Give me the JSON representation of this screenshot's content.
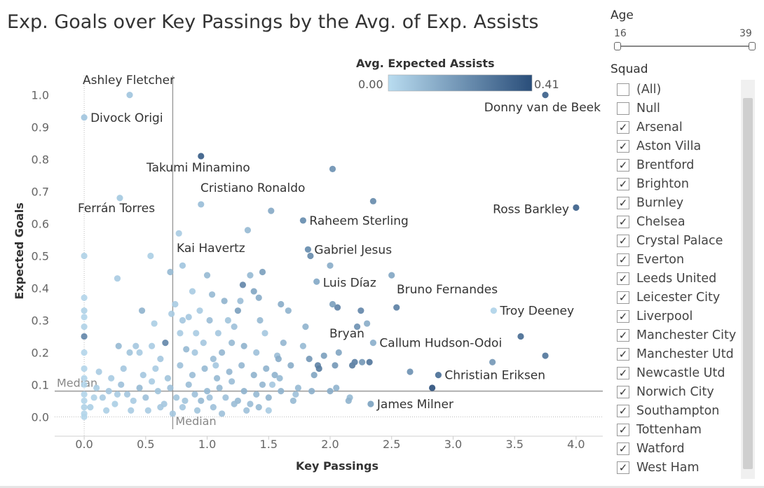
{
  "title": "Exp. Goals over Key Passings by the Avg. of Exp. Assists",
  "legend": {
    "title": "Avg. Expected Assists",
    "min_label": "0.00",
    "max_label": "0.41",
    "color_low": "#b9dcf0",
    "color_high": "#2a4e7a"
  },
  "filters": {
    "age": {
      "title": "Age",
      "min": "16",
      "max": "39",
      "range": [
        16,
        39
      ]
    },
    "squad": {
      "title": "Squad",
      "items": [
        {
          "label": "(All)",
          "checked": false
        },
        {
          "label": "Null",
          "checked": false
        },
        {
          "label": "Arsenal",
          "checked": true
        },
        {
          "label": "Aston Villa",
          "checked": true
        },
        {
          "label": "Brentford",
          "checked": true
        },
        {
          "label": "Brighton",
          "checked": true
        },
        {
          "label": "Burnley",
          "checked": true
        },
        {
          "label": "Chelsea",
          "checked": true
        },
        {
          "label": "Crystal Palace",
          "checked": true
        },
        {
          "label": "Everton",
          "checked": true
        },
        {
          "label": "Leeds United",
          "checked": true
        },
        {
          "label": "Leicester City",
          "checked": true
        },
        {
          "label": "Liverpool",
          "checked": true
        },
        {
          "label": "Manchester City",
          "checked": true
        },
        {
          "label": "Manchester Utd",
          "checked": true
        },
        {
          "label": "Newcastle Utd",
          "checked": true
        },
        {
          "label": "Norwich City",
          "checked": true
        },
        {
          "label": "Southampton",
          "checked": true
        },
        {
          "label": "Tottenham",
          "checked": true
        },
        {
          "label": "Watford",
          "checked": true
        },
        {
          "label": "West Ham",
          "checked": true
        }
      ]
    }
  },
  "chart_data": {
    "type": "scatter",
    "xlabel": "Key Passings",
    "ylabel": "Expected Goals",
    "xlim": [
      -0.24,
      4.24
    ],
    "ylim": [
      -0.06,
      1.06
    ],
    "xticks": [
      0.0,
      0.5,
      1.0,
      1.5,
      2.0,
      2.5,
      3.0,
      3.5,
      4.0
    ],
    "xtick_labels": [
      "0.0",
      "0.5",
      "1.0",
      "1.5",
      "2.0",
      "2.5",
      "3.0",
      "3.5",
      "4.0"
    ],
    "yticks": [
      0.0,
      0.1,
      0.2,
      0.3,
      0.4,
      0.5,
      0.6,
      0.7,
      0.8,
      0.9,
      1.0
    ],
    "ytick_labels": [
      "0.0",
      "0.1",
      "0.2",
      "0.3",
      "0.4",
      "0.5",
      "0.6",
      "0.7",
      "0.8",
      "0.9",
      "1.0"
    ],
    "grid": false,
    "reference_lines": [
      {
        "axis": "x",
        "value": 0.72,
        "label": "Median"
      },
      {
        "axis": "y",
        "value": 0.08,
        "label": "Median"
      }
    ],
    "color_scale": {
      "field": "Avg. Expected Assists",
      "min": 0.0,
      "max": 0.41
    },
    "labeled_points": [
      {
        "name": "Ashley Fletcher",
        "x": 0.37,
        "y": 1.0,
        "c": 0.06
      },
      {
        "name": "Divock Origi",
        "x": 0.0,
        "y": 0.93,
        "c": 0.06
      },
      {
        "name": "Donny van de Beek",
        "x": 3.75,
        "y": 1.0,
        "c": 0.34
      },
      {
        "name": "Takumi Minamino",
        "x": 0.95,
        "y": 0.81,
        "c": 0.35
      },
      {
        "name": "Cristiano Ronaldo",
        "x": 0.95,
        "y": 0.66,
        "c": 0.08
      },
      {
        "name": "Ferrán Torres",
        "x": 0.29,
        "y": 0.68,
        "c": 0.05
      },
      {
        "name": "Ross Barkley",
        "x": 4.0,
        "y": 0.65,
        "c": 0.34
      },
      {
        "name": "Raheem Sterling",
        "x": 1.78,
        "y": 0.61,
        "c": 0.22
      },
      {
        "name": "Gabriel Jesus",
        "x": 1.82,
        "y": 0.52,
        "c": 0.22
      },
      {
        "name": "Kai Havertz",
        "x": 0.8,
        "y": 0.47,
        "c": 0.06
      },
      {
        "name": "Luis Díaz",
        "x": 1.89,
        "y": 0.42,
        "c": 0.14
      },
      {
        "name": "Bruno Fernandes",
        "x": 2.54,
        "y": 0.34,
        "c": 0.25
      },
      {
        "name": "Troy Deeney",
        "x": 3.33,
        "y": 0.33,
        "c": 0.02
      },
      {
        "name": "Bryan",
        "x": 2.2,
        "y": 0.17,
        "c": 0.25
      },
      {
        "name": "Callum Hudson-Odoi",
        "x": 2.35,
        "y": 0.23,
        "c": 0.12
      },
      {
        "name": "Christian Eriksen",
        "x": 2.88,
        "y": 0.13,
        "c": 0.3
      },
      {
        "name": "James Milner",
        "x": 2.33,
        "y": 0.04,
        "c": 0.16
      }
    ],
    "points": [
      {
        "x": 2.02,
        "y": 0.77,
        "c": 0.22
      },
      {
        "x": 2.35,
        "y": 0.67,
        "c": 0.24
      },
      {
        "x": 1.52,
        "y": 0.64,
        "c": 0.15
      },
      {
        "x": 3.75,
        "y": 0.19,
        "c": 0.3
      },
      {
        "x": 3.55,
        "y": 0.25,
        "c": 0.33
      },
      {
        "x": 3.32,
        "y": 0.17,
        "c": 0.2
      },
      {
        "x": 2.83,
        "y": 0.09,
        "c": 0.41
      },
      {
        "x": 2.65,
        "y": 0.14,
        "c": 0.22
      },
      {
        "x": 2.5,
        "y": 0.44,
        "c": 0.16
      },
      {
        "x": 2.3,
        "y": 0.29,
        "c": 0.14
      },
      {
        "x": 2.25,
        "y": 0.33,
        "c": 0.25
      },
      {
        "x": 2.22,
        "y": 0.28,
        "c": 0.22
      },
      {
        "x": 2.18,
        "y": 0.16,
        "c": 0.28
      },
      {
        "x": 2.26,
        "y": 0.17,
        "c": 0.2
      },
      {
        "x": 2.32,
        "y": 0.17,
        "c": 0.3
      },
      {
        "x": 2.16,
        "y": 0.06,
        "c": 0.1
      },
      {
        "x": 2.06,
        "y": 0.34,
        "c": 0.26
      },
      {
        "x": 2.0,
        "y": 0.47,
        "c": 0.14
      },
      {
        "x": 2.02,
        "y": 0.35,
        "c": 0.18
      },
      {
        "x": 2.07,
        "y": 0.2,
        "c": 0.16
      },
      {
        "x": 2.04,
        "y": 0.16,
        "c": 0.2
      },
      {
        "x": 2.05,
        "y": 0.09,
        "c": 0.12
      },
      {
        "x": 2.0,
        "y": 0.08,
        "c": 0.14
      },
      {
        "x": 1.95,
        "y": 0.19,
        "c": 0.18
      },
      {
        "x": 1.9,
        "y": 0.16,
        "c": 0.26
      },
      {
        "x": 1.91,
        "y": 0.15,
        "c": 0.28
      },
      {
        "x": 1.87,
        "y": 0.13,
        "c": 0.16
      },
      {
        "x": 1.8,
        "y": 0.28,
        "c": 0.12
      },
      {
        "x": 1.84,
        "y": 0.5,
        "c": 0.24
      },
      {
        "x": 1.83,
        "y": 0.18,
        "c": 0.2
      },
      {
        "x": 1.78,
        "y": 0.22,
        "c": 0.1
      },
      {
        "x": 1.74,
        "y": 0.09,
        "c": 0.1
      },
      {
        "x": 1.72,
        "y": 0.07,
        "c": 0.08
      },
      {
        "x": 1.68,
        "y": 0.16,
        "c": 0.14
      },
      {
        "x": 1.66,
        "y": 0.33,
        "c": 0.12
      },
      {
        "x": 1.6,
        "y": 0.35,
        "c": 0.14
      },
      {
        "x": 1.62,
        "y": 0.23,
        "c": 0.11
      },
      {
        "x": 1.57,
        "y": 0.19,
        "c": 0.09
      },
      {
        "x": 1.55,
        "y": 0.13,
        "c": 0.12
      },
      {
        "x": 1.59,
        "y": 0.12,
        "c": 0.1
      },
      {
        "x": 1.53,
        "y": 0.1,
        "c": 0.06
      },
      {
        "x": 1.5,
        "y": 0.02,
        "c": 0.05
      },
      {
        "x": 1.47,
        "y": 0.26,
        "c": 0.06
      },
      {
        "x": 1.43,
        "y": 0.3,
        "c": 0.1
      },
      {
        "x": 1.45,
        "y": 0.45,
        "c": 0.18
      },
      {
        "x": 1.42,
        "y": 0.37,
        "c": 0.14
      },
      {
        "x": 1.38,
        "y": 0.39,
        "c": 0.16
      },
      {
        "x": 1.35,
        "y": 0.44,
        "c": 0.1
      },
      {
        "x": 1.33,
        "y": 0.58,
        "c": 0.1
      },
      {
        "x": 1.29,
        "y": 0.41,
        "c": 0.25
      },
      {
        "x": 1.27,
        "y": 0.36,
        "c": 0.09
      },
      {
        "x": 1.25,
        "y": 0.33,
        "c": 0.18
      },
      {
        "x": 1.22,
        "y": 0.28,
        "c": 0.08
      },
      {
        "x": 1.2,
        "y": 0.23,
        "c": 0.1
      },
      {
        "x": 1.17,
        "y": 0.3,
        "c": 0.07
      },
      {
        "x": 1.14,
        "y": 0.36,
        "c": 0.12
      },
      {
        "x": 1.12,
        "y": 0.2,
        "c": 0.11
      },
      {
        "x": 1.09,
        "y": 0.26,
        "c": 0.06
      },
      {
        "x": 1.07,
        "y": 0.16,
        "c": 0.06
      },
      {
        "x": 1.04,
        "y": 0.38,
        "c": 0.1
      },
      {
        "x": 1.02,
        "y": 0.3,
        "c": 0.09
      },
      {
        "x": 1.0,
        "y": 0.44,
        "c": 0.1
      },
      {
        "x": 0.97,
        "y": 0.23,
        "c": 0.06
      },
      {
        "x": 0.94,
        "y": 0.33,
        "c": 0.05
      },
      {
        "x": 0.91,
        "y": 0.26,
        "c": 0.05
      },
      {
        "x": 0.88,
        "y": 0.39,
        "c": 0.05
      },
      {
        "x": 0.85,
        "y": 0.31,
        "c": 0.06
      },
      {
        "x": 0.83,
        "y": 0.21,
        "c": 0.1
      },
      {
        "x": 0.8,
        "y": 0.3,
        "c": 0.06
      },
      {
        "x": 0.77,
        "y": 0.57,
        "c": 0.05
      },
      {
        "x": 0.74,
        "y": 0.35,
        "c": 0.05
      },
      {
        "x": 0.71,
        "y": 0.32,
        "c": 0.05
      },
      {
        "x": 0.7,
        "y": 0.45,
        "c": 0.1
      },
      {
        "x": 0.66,
        "y": 0.23,
        "c": 0.25
      },
      {
        "x": 0.62,
        "y": 0.18,
        "c": 0.06
      },
      {
        "x": 0.57,
        "y": 0.29,
        "c": 0.04
      },
      {
        "x": 0.54,
        "y": 0.5,
        "c": 0.04
      },
      {
        "x": 0.47,
        "y": 0.33,
        "c": 0.12
      },
      {
        "x": 0.45,
        "y": 0.2,
        "c": 0.05
      },
      {
        "x": 0.42,
        "y": 0.22,
        "c": 0.06
      },
      {
        "x": 0.37,
        "y": 0.2,
        "c": 0.07
      },
      {
        "x": 0.27,
        "y": 0.43,
        "c": 0.05
      },
      {
        "x": 0.28,
        "y": 0.22,
        "c": 0.1
      },
      {
        "x": 0.0,
        "y": 0.5,
        "c": 0.03
      },
      {
        "x": 0.0,
        "y": 0.37,
        "c": 0.02
      },
      {
        "x": 0.0,
        "y": 0.33,
        "c": 0.03
      },
      {
        "x": 0.0,
        "y": 0.31,
        "c": 0.02
      },
      {
        "x": 0.0,
        "y": 0.28,
        "c": 0.03
      },
      {
        "x": 0.0,
        "y": 0.25,
        "c": 0.25
      },
      {
        "x": 0.0,
        "y": 0.2,
        "c": 0.02
      },
      {
        "x": 0.0,
        "y": 0.15,
        "c": 0.02
      },
      {
        "x": 0.0,
        "y": 0.12,
        "c": 0.02
      },
      {
        "x": 0.0,
        "y": 0.1,
        "c": 0.02
      },
      {
        "x": 0.0,
        "y": 0.07,
        "c": 0.02
      },
      {
        "x": 0.0,
        "y": 0.05,
        "c": 0.02
      },
      {
        "x": 0.0,
        "y": 0.03,
        "c": 0.03
      },
      {
        "x": 0.0,
        "y": 0.01,
        "c": 0.02
      },
      {
        "x": 0.0,
        "y": 0.0,
        "c": 0.02
      },
      {
        "x": 0.1,
        "y": 0.09,
        "c": 0.04
      },
      {
        "x": 0.15,
        "y": 0.06,
        "c": 0.05
      },
      {
        "x": 0.2,
        "y": 0.08,
        "c": 0.06
      },
      {
        "x": 0.25,
        "y": 0.04,
        "c": 0.04
      },
      {
        "x": 0.3,
        "y": 0.1,
        "c": 0.08
      },
      {
        "x": 0.35,
        "y": 0.07,
        "c": 0.06
      },
      {
        "x": 0.4,
        "y": 0.05,
        "c": 0.05
      },
      {
        "x": 0.45,
        "y": 0.09,
        "c": 0.1
      },
      {
        "x": 0.5,
        "y": 0.06,
        "c": 0.08
      },
      {
        "x": 0.55,
        "y": 0.11,
        "c": 0.05
      },
      {
        "x": 0.6,
        "y": 0.08,
        "c": 0.07
      },
      {
        "x": 0.65,
        "y": 0.04,
        "c": 0.06
      },
      {
        "x": 0.7,
        "y": 0.09,
        "c": 0.08
      },
      {
        "x": 0.75,
        "y": 0.06,
        "c": 0.07
      },
      {
        "x": 0.8,
        "y": 0.03,
        "c": 0.06
      },
      {
        "x": 0.85,
        "y": 0.1,
        "c": 0.09
      },
      {
        "x": 0.9,
        "y": 0.07,
        "c": 0.08
      },
      {
        "x": 0.95,
        "y": 0.05,
        "c": 0.1
      },
      {
        "x": 1.0,
        "y": 0.08,
        "c": 0.1
      },
      {
        "x": 1.05,
        "y": 0.03,
        "c": 0.08
      },
      {
        "x": 1.1,
        "y": 0.09,
        "c": 0.1
      },
      {
        "x": 1.15,
        "y": 0.06,
        "c": 0.08
      },
      {
        "x": 1.2,
        "y": 0.11,
        "c": 0.09
      },
      {
        "x": 1.25,
        "y": 0.05,
        "c": 0.1
      },
      {
        "x": 1.3,
        "y": 0.08,
        "c": 0.12
      },
      {
        "x": 1.35,
        "y": 0.04,
        "c": 0.09
      },
      {
        "x": 1.4,
        "y": 0.07,
        "c": 0.1
      },
      {
        "x": 1.45,
        "y": 0.1,
        "c": 0.11
      },
      {
        "x": 1.5,
        "y": 0.06,
        "c": 0.12
      },
      {
        "x": 1.6,
        "y": 0.08,
        "c": 0.12
      },
      {
        "x": 1.7,
        "y": 0.05,
        "c": 0.1
      },
      {
        "x": 1.85,
        "y": 0.08,
        "c": 0.13
      },
      {
        "x": 2.15,
        "y": 0.05,
        "c": 0.12
      },
      {
        "x": 0.12,
        "y": 0.14,
        "c": 0.05
      },
      {
        "x": 0.22,
        "y": 0.12,
        "c": 0.05
      },
      {
        "x": 0.32,
        "y": 0.15,
        "c": 0.06
      },
      {
        "x": 0.48,
        "y": 0.13,
        "c": 0.06
      },
      {
        "x": 0.58,
        "y": 0.15,
        "c": 0.05
      },
      {
        "x": 0.68,
        "y": 0.12,
        "c": 0.07
      },
      {
        "x": 0.78,
        "y": 0.16,
        "c": 0.08
      },
      {
        "x": 0.88,
        "y": 0.13,
        "c": 0.09
      },
      {
        "x": 0.98,
        "y": 0.15,
        "c": 0.1
      },
      {
        "x": 1.08,
        "y": 0.12,
        "c": 0.1
      },
      {
        "x": 1.18,
        "y": 0.14,
        "c": 0.11
      },
      {
        "x": 1.28,
        "y": 0.16,
        "c": 0.11
      },
      {
        "x": 1.38,
        "y": 0.13,
        "c": 0.12
      },
      {
        "x": 1.48,
        "y": 0.15,
        "c": 0.12
      },
      {
        "x": 1.58,
        "y": 0.18,
        "c": 0.14
      },
      {
        "x": 0.05,
        "y": 0.03,
        "c": 0.04
      },
      {
        "x": 0.18,
        "y": 0.02,
        "c": 0.04
      },
      {
        "x": 0.38,
        "y": 0.02,
        "c": 0.05
      },
      {
        "x": 0.52,
        "y": 0.02,
        "c": 0.05
      },
      {
        "x": 0.72,
        "y": 0.01,
        "c": 0.06
      },
      {
        "x": 0.92,
        "y": 0.02,
        "c": 0.07
      },
      {
        "x": 1.12,
        "y": 0.01,
        "c": 0.08
      },
      {
        "x": 1.32,
        "y": 0.02,
        "c": 0.08
      },
      {
        "x": 0.08,
        "y": 0.06,
        "c": 0.03
      },
      {
        "x": 0.27,
        "y": 0.07,
        "c": 0.05
      },
      {
        "x": 0.62,
        "y": 0.03,
        "c": 0.06
      },
      {
        "x": 0.82,
        "y": 0.05,
        "c": 0.07
      },
      {
        "x": 1.02,
        "y": 0.06,
        "c": 0.08
      },
      {
        "x": 1.22,
        "y": 0.04,
        "c": 0.09
      },
      {
        "x": 1.42,
        "y": 0.03,
        "c": 0.1
      },
      {
        "x": 0.78,
        "y": 0.26,
        "c": 0.05
      },
      {
        "x": 1.05,
        "y": 0.18,
        "c": 0.09
      },
      {
        "x": 1.3,
        "y": 0.22,
        "c": 0.12
      },
      {
        "x": 1.4,
        "y": 0.2,
        "c": 0.08
      },
      {
        "x": 0.55,
        "y": 0.22,
        "c": 0.05
      },
      {
        "x": 0.9,
        "y": 0.2,
        "c": 0.06
      }
    ]
  }
}
